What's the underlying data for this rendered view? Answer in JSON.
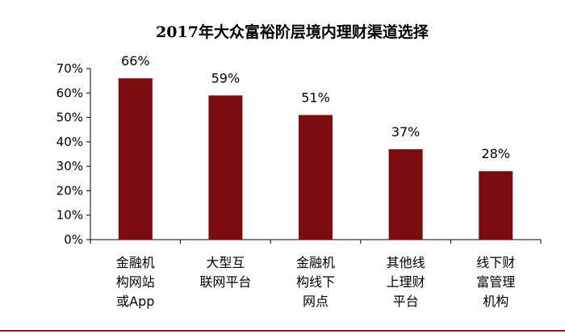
{
  "chart_data": {
    "type": "bar",
    "title": "2017年大众富裕阶层境内理财渠道选择",
    "categories": [
      "金融机构网站或App",
      "大型互联网平台",
      "金融机构线下网点",
      "其他线上理财平台",
      "线下财富管理机构"
    ],
    "category_label_lines": [
      [
        "金融机",
        "构网站",
        "或App"
      ],
      [
        "大型互",
        "联网平台"
      ],
      [
        "金融机",
        "构线下",
        "网点"
      ],
      [
        "其他线",
        "上理财",
        "平台"
      ],
      [
        "线下财",
        "富管理",
        "机构"
      ]
    ],
    "values": [
      66,
      59,
      51,
      37,
      28
    ],
    "data_labels": [
      "66%",
      "59%",
      "51%",
      "37%",
      "28%"
    ],
    "y_ticks": [
      "0%",
      "10%",
      "20%",
      "30%",
      "40%",
      "50%",
      "60%",
      "70%"
    ],
    "ylim": [
      0,
      70
    ],
    "xlabel": "",
    "ylabel": "",
    "grid": false,
    "legend": "none",
    "colors": {
      "bar": "#7b0c10",
      "axis": "#000000",
      "bottom_rule": "#9a1b1e"
    }
  }
}
